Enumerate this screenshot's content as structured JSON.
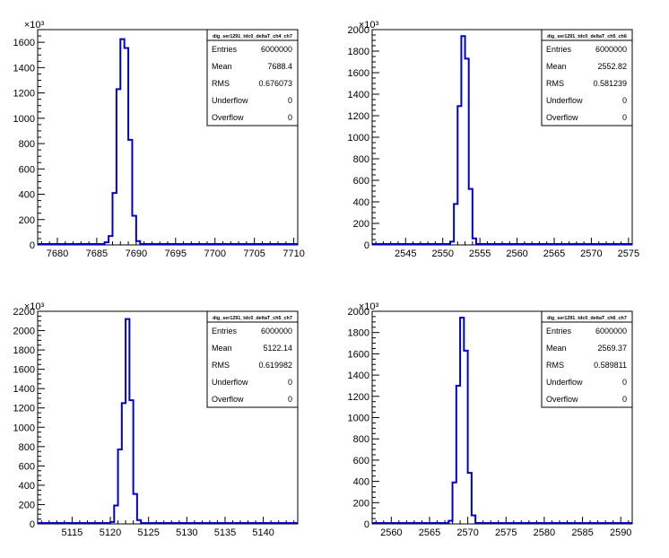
{
  "chart_data": [
    {
      "type": "histogram",
      "name": "dig_ser1291_tdc0_deltaT_ch4_ch7",
      "xlim": [
        7677.5,
        7710.5
      ],
      "ylim": [
        0,
        1700
      ],
      "y_multiplier": "×10³",
      "x_ticks": [
        7680,
        7685,
        7690,
        7695,
        7700,
        7705,
        7710
      ],
      "y_ticks": [
        0,
        200,
        400,
        600,
        800,
        1000,
        1200,
        1400,
        1600
      ],
      "bin_width": 0.5,
      "bin_start": 7686.0,
      "bin_values": [
        20,
        70,
        410,
        1230,
        1625,
        1555,
        830,
        230,
        30
      ],
      "stats": {
        "title": "dig_ser1291_tdc0_deltaT_ch4_ch7",
        "rows": [
          {
            "label": "Entries",
            "value": "6000000"
          },
          {
            "label": "Mean",
            "value": "7688.4"
          },
          {
            "label": "RMS",
            "value": "0.676073"
          },
          {
            "label": "Underflow",
            "value": "0"
          },
          {
            "label": "Overflow",
            "value": "0"
          }
        ]
      }
    },
    {
      "type": "histogram",
      "name": "dig_ser1291_tdc0_deltaT_ch5_ch6",
      "xlim": [
        2540.5,
        2575.5
      ],
      "ylim": [
        0,
        2000
      ],
      "y_multiplier": "×10³",
      "x_ticks": [
        2545,
        2550,
        2555,
        2560,
        2565,
        2570,
        2575
      ],
      "y_ticks": [
        0,
        200,
        400,
        600,
        800,
        1000,
        1200,
        1400,
        1600,
        1800,
        2000
      ],
      "bin_width": 0.5,
      "bin_start": 2551.0,
      "bin_values": [
        30,
        380,
        1290,
        1940,
        1730,
        520,
        60
      ],
      "stats": {
        "title": "dig_ser1291_tdc0_deltaT_ch5_ch6",
        "rows": [
          {
            "label": "Entries",
            "value": "6000000"
          },
          {
            "label": "Mean",
            "value": "2552.82"
          },
          {
            "label": "RMS",
            "value": "0.581239"
          },
          {
            "label": "Underflow",
            "value": "0"
          },
          {
            "label": "Overflow",
            "value": "0"
          }
        ]
      }
    },
    {
      "type": "histogram",
      "name": "dig_ser1291_tdc0_deltaT_ch5_ch7",
      "xlim": [
        5110.5,
        5144.5
      ],
      "ylim": [
        0,
        2200
      ],
      "y_multiplier": "×10³",
      "x_ticks": [
        5115,
        5120,
        5125,
        5130,
        5135,
        5140
      ],
      "y_ticks": [
        0,
        200,
        400,
        600,
        800,
        1000,
        1200,
        1400,
        1600,
        1800,
        2000,
        2200
      ],
      "bin_width": 0.5,
      "bin_start": 5120.0,
      "bin_values": [
        20,
        190,
        770,
        1250,
        2120,
        1280,
        310,
        40
      ],
      "stats": {
        "title": "dig_ser1291_tdc0_deltaT_ch5_ch7",
        "rows": [
          {
            "label": "Entries",
            "value": "6000000"
          },
          {
            "label": "Mean",
            "value": "5122.14"
          },
          {
            "label": "RMS",
            "value": "0.619982"
          },
          {
            "label": "Underflow",
            "value": "0"
          },
          {
            "label": "Overflow",
            "value": "0"
          }
        ]
      }
    },
    {
      "type": "histogram",
      "name": "dig_ser1291_tdc0_deltaT_ch6_ch7",
      "xlim": [
        2557.5,
        2591.5
      ],
      "ylim": [
        0,
        2000
      ],
      "y_multiplier": "×10³",
      "x_ticks": [
        2560,
        2565,
        2570,
        2575,
        2580,
        2585,
        2590
      ],
      "y_ticks": [
        0,
        200,
        400,
        600,
        800,
        1000,
        1200,
        1400,
        1600,
        1800,
        2000
      ],
      "bin_width": 0.5,
      "bin_start": 2567.5,
      "bin_values": [
        30,
        390,
        1300,
        1940,
        1630,
        480,
        80
      ],
      "stats": {
        "title": "dig_ser1291_tdc0_deltaT_ch6_ch7",
        "rows": [
          {
            "label": "Entries",
            "value": "6000000"
          },
          {
            "label": "Mean",
            "value": "2569.37"
          },
          {
            "label": "RMS",
            "value": "0.589811"
          },
          {
            "label": "Underflow",
            "value": "0"
          },
          {
            "label": "Overflow",
            "value": "0"
          }
        ]
      }
    }
  ],
  "style": {
    "line_color": "#0000cc",
    "axis_color": "#000000",
    "background": "#ffffff"
  }
}
